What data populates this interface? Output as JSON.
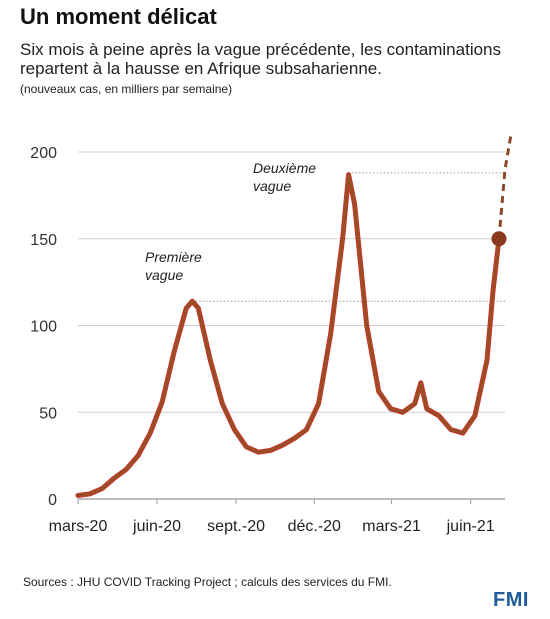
{
  "header": {
    "title": "Un moment délicat",
    "subtitle": "Six mois à peine après la vague précédente, les contaminations repartent à la hausse en Afrique subsaharienne.",
    "unit": "(nouveaux cas, en milliers par semaine)"
  },
  "chart_data": {
    "type": "line",
    "title": "Un moment délicat",
    "subtitle": "Six mois à peine après la vague précédente, les contaminations repartent à la hausse en Afrique subsaharienne.",
    "ylabel": "(nouveaux cas, en milliers par semaine)",
    "ylim": [
      0,
      200
    ],
    "y_ticks": [
      0,
      50,
      100,
      150,
      200
    ],
    "x_ticks": [
      "mars-20",
      "juin-20",
      "sept.-20",
      "déc.-20",
      "mars-21",
      "juin-21"
    ],
    "grid": true,
    "annotations": [
      "Première vague",
      "Deuxième vague"
    ],
    "reference_lines": [
      114,
      188
    ],
    "series": [
      {
        "values": [
          [
            "2020-03-01",
            2
          ],
          [
            "2020-03-15",
            3
          ],
          [
            "2020-03-29",
            6
          ],
          [
            "2020-04-12",
            12
          ],
          [
            "2020-04-26",
            17
          ],
          [
            "2020-05-10",
            25
          ],
          [
            "2020-05-24",
            38
          ],
          [
            "2020-06-07",
            56
          ],
          [
            "2020-06-21",
            85
          ],
          [
            "2020-07-05",
            110
          ],
          [
            "2020-07-12",
            114
          ],
          [
            "2020-07-19",
            110
          ],
          [
            "2020-08-02",
            80
          ],
          [
            "2020-08-16",
            55
          ],
          [
            "2020-08-30",
            40
          ],
          [
            "2020-09-13",
            30
          ],
          [
            "2020-09-27",
            27
          ],
          [
            "2020-10-11",
            28
          ],
          [
            "2020-10-25",
            31
          ],
          [
            "2020-11-08",
            35
          ],
          [
            "2020-11-22",
            40
          ],
          [
            "2020-12-06",
            55
          ],
          [
            "2020-12-20",
            95
          ],
          [
            "2021-01-03",
            150
          ],
          [
            "2021-01-10",
            187
          ],
          [
            "2021-01-17",
            170
          ],
          [
            "2021-01-31",
            100
          ],
          [
            "2021-02-14",
            62
          ],
          [
            "2021-02-28",
            52
          ],
          [
            "2021-03-14",
            50
          ],
          [
            "2021-03-28",
            55
          ],
          [
            "2021-04-04",
            67
          ],
          [
            "2021-04-11",
            52
          ],
          [
            "2021-04-25",
            48
          ],
          [
            "2021-05-09",
            40
          ],
          [
            "2021-05-23",
            38
          ],
          [
            "2021-06-06",
            48
          ],
          [
            "2021-06-20",
            80
          ],
          [
            "2021-06-27",
            120
          ],
          [
            "2021-07-04",
            150
          ]
        ]
      },
      {
        "values": [
          [
            "2021-07-04",
            150
          ],
          [
            "2021-07-11",
            190
          ],
          [
            "2021-07-18",
            210
          ]
        ]
      }
    ],
    "highlight_point": [
      "2021-07-04",
      150
    ]
  },
  "footer": {
    "source": "Sources : JHU COVID Tracking Project ; calculs des services du FMI.",
    "logo": "FMI"
  },
  "colors": {
    "series_line": "#c0392b",
    "series_overlay": "#6b6a1f",
    "projection": "#8b4a2a",
    "grid": "#cfcfcf",
    "logo": "#1f5c99"
  }
}
